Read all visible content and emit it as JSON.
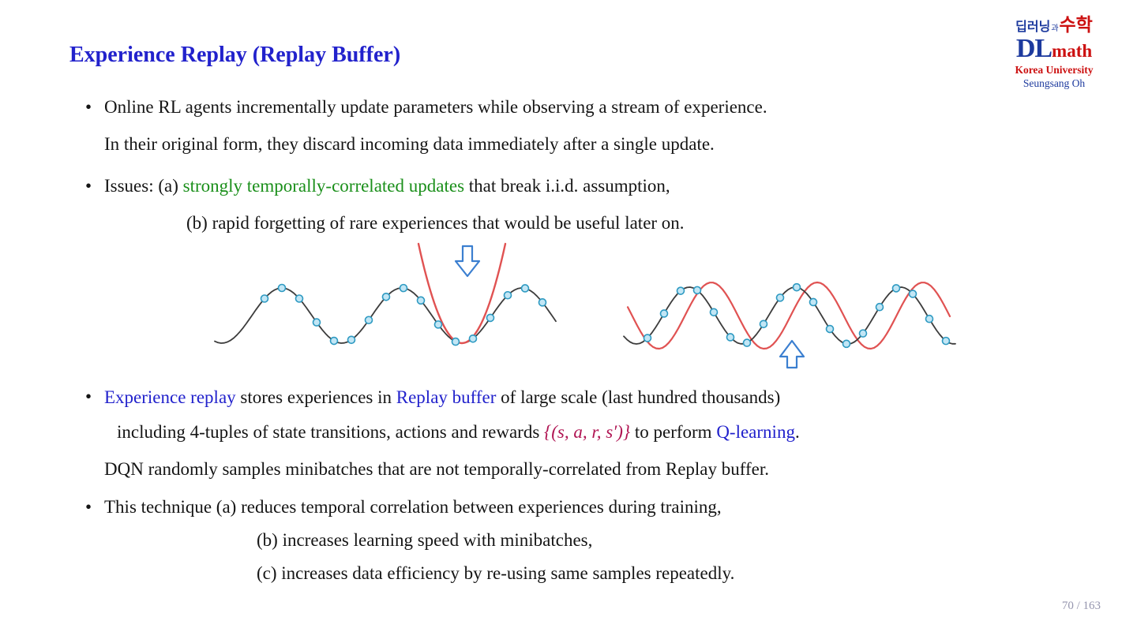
{
  "title": "Experience Replay (Replay Buffer)",
  "logo": {
    "kr1": "딥러닝",
    "kr2": "과",
    "kr3": "수학",
    "dl": "DL",
    "math": "math",
    "univ": "Korea University",
    "author": "Seungsang Oh"
  },
  "bullet1": {
    "line1": "Online RL agents incrementally update parameters while observing a stream of experience.",
    "line2": "In their original form, they discard incoming data immediately after a single update."
  },
  "bullet2": {
    "prefix": "Issues:  (a) ",
    "green": "strongly temporally-correlated updates",
    "suffix": " that break i.i.d. assumption,",
    "line2": "(b) rapid forgetting of rare experiences that would be useful later on."
  },
  "bullet3": {
    "blue1": "Experience replay",
    "mid1": " stores experiences in ",
    "blue2": "Replay buffer",
    "tail1": " of large scale (last hundred thousands)",
    "lead2": "including 4-tuples of state transitions, actions and rewards ",
    "math": "{(s, a, r, s′)}",
    "mid2": " to perform ",
    "blue3": "Q-learning",
    "dot": ".",
    "line3": "DQN randomly samples minibatches that are not temporally-correlated from Replay buffer."
  },
  "bullet4": {
    "line1": "This technique (a) reduces temporal correlation between experiences during training,",
    "line2": "(b) increases learning speed with minibatches,",
    "line3": "(c) increases data efficiency by re-using same samples repeatedly."
  },
  "page": "70 / 163",
  "colors": {
    "title_blue": "#2222cc",
    "highlight_green": "#1a8f1a",
    "math_red": "#b01553",
    "curve_black": "#3c3c3c",
    "curve_red": "#e05252",
    "dot_fill": "#c2e6f5",
    "dot_stroke": "#2e9ac2",
    "arrow_blue": "#3b7fd0",
    "logo_blue": "#1d3a9e",
    "logo_red": "#cc1111"
  }
}
